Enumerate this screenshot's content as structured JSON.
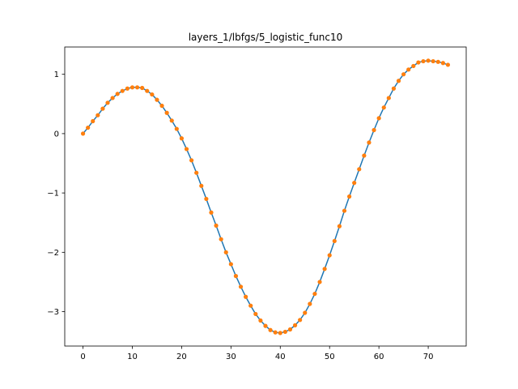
{
  "chart_data": {
    "type": "line",
    "title": "layers_1/lbfgs/5_logistic_func10",
    "xlabel": "",
    "ylabel": "",
    "xlim": [
      -3.7,
      77.7
    ],
    "ylim": [
      -3.58,
      1.46
    ],
    "xticks": [
      0,
      10,
      20,
      30,
      40,
      50,
      60,
      70
    ],
    "yticks": [
      -3,
      -2,
      -1,
      0,
      1
    ],
    "grid": false,
    "legend": "none",
    "series": [
      {
        "kind": "line",
        "color": "#1f77b4",
        "x": [
          0,
          1,
          2,
          3,
          4,
          5,
          6,
          7,
          8,
          9,
          10,
          11,
          12,
          13,
          14,
          15,
          16,
          17,
          18,
          19,
          20,
          21,
          22,
          23,
          24,
          25,
          26,
          27,
          28,
          29,
          30,
          31,
          32,
          33,
          34,
          35,
          36,
          37,
          38,
          39,
          40,
          41,
          42,
          43,
          44,
          45,
          46,
          47,
          48,
          49,
          50,
          51,
          52,
          53,
          54,
          55,
          56,
          57,
          58,
          59,
          60,
          61,
          62,
          63,
          64,
          65,
          66,
          67,
          68,
          69,
          70,
          71,
          72,
          73,
          74
        ],
        "y": [
          0.0,
          0.1,
          0.21,
          0.31,
          0.42,
          0.52,
          0.6,
          0.67,
          0.72,
          0.76,
          0.78,
          0.78,
          0.77,
          0.72,
          0.66,
          0.57,
          0.47,
          0.35,
          0.22,
          0.08,
          -0.08,
          -0.26,
          -0.45,
          -0.66,
          -0.88,
          -1.1,
          -1.33,
          -1.55,
          -1.78,
          -2.0,
          -2.2,
          -2.4,
          -2.58,
          -2.75,
          -2.9,
          -3.04,
          -3.15,
          -3.24,
          -3.31,
          -3.35,
          -3.36,
          -3.34,
          -3.3,
          -3.23,
          -3.14,
          -3.02,
          -2.87,
          -2.7,
          -2.5,
          -2.28,
          -2.05,
          -1.81,
          -1.56,
          -1.3,
          -1.06,
          -0.83,
          -0.6,
          -0.37,
          -0.15,
          0.06,
          0.26,
          0.44,
          0.6,
          0.76,
          0.89,
          1.0,
          1.08,
          1.14,
          1.2,
          1.22,
          1.23,
          1.22,
          1.21,
          1.19,
          1.16
        ]
      },
      {
        "kind": "scatter",
        "color": "#ff7f0e",
        "x": [
          0,
          1,
          2,
          3,
          4,
          5,
          6,
          7,
          8,
          9,
          10,
          11,
          12,
          13,
          14,
          15,
          16,
          17,
          18,
          19,
          20,
          21,
          22,
          23,
          24,
          25,
          26,
          27,
          28,
          29,
          30,
          31,
          32,
          33,
          34,
          35,
          36,
          37,
          38,
          39,
          40,
          41,
          42,
          43,
          44,
          45,
          46,
          47,
          48,
          49,
          50,
          51,
          52,
          53,
          54,
          55,
          56,
          57,
          58,
          59,
          60,
          61,
          62,
          63,
          64,
          65,
          66,
          67,
          68,
          69,
          70,
          71,
          72,
          73,
          74
        ],
        "y": [
          0.0,
          0.1,
          0.21,
          0.31,
          0.42,
          0.52,
          0.6,
          0.67,
          0.72,
          0.76,
          0.78,
          0.78,
          0.77,
          0.72,
          0.66,
          0.57,
          0.47,
          0.35,
          0.22,
          0.08,
          -0.08,
          -0.26,
          -0.45,
          -0.66,
          -0.88,
          -1.1,
          -1.33,
          -1.55,
          -1.78,
          -2.0,
          -2.2,
          -2.4,
          -2.58,
          -2.75,
          -2.9,
          -3.04,
          -3.15,
          -3.24,
          -3.31,
          -3.35,
          -3.36,
          -3.34,
          -3.3,
          -3.23,
          -3.14,
          -3.02,
          -2.87,
          -2.7,
          -2.5,
          -2.28,
          -2.05,
          -1.81,
          -1.56,
          -1.3,
          -1.06,
          -0.83,
          -0.6,
          -0.37,
          -0.15,
          0.06,
          0.26,
          0.44,
          0.6,
          0.76,
          0.89,
          1.0,
          1.08,
          1.14,
          1.2,
          1.22,
          1.23,
          1.22,
          1.21,
          1.19,
          1.16
        ]
      }
    ]
  }
}
